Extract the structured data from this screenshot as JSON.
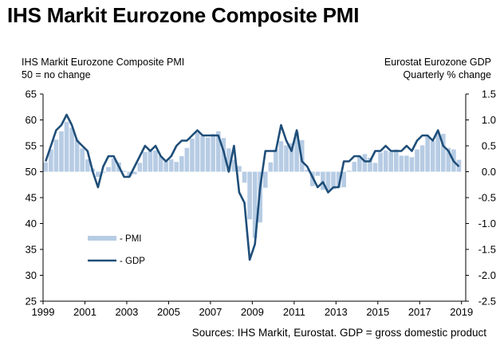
{
  "title": "IHS Markit Eurozone Composite PMI",
  "left_header": {
    "line1": "IHS Markit Eurozone Composite  PMI",
    "line2": "50 = no change"
  },
  "right_header": {
    "line1": "Eurostat Eurozone GDP",
    "line2": "Quarterly % change"
  },
  "source": "Sources: IHS Markit, Eurostat.  GDP = gross domestic product",
  "colors": {
    "pmi_bars": "#b7cce4",
    "gdp_line": "#1f4e79",
    "axis": "#000000"
  },
  "chart_data": {
    "type": "bar",
    "left_axis": {
      "range": [
        25,
        65
      ],
      "ticks": [
        "25",
        "30",
        "35",
        "40",
        "45",
        "50",
        "55",
        "60",
        "65"
      ]
    },
    "right_axis": {
      "range": [
        -2.5,
        1.5
      ],
      "ticks": [
        "-2.5",
        "-2.0",
        "-1.5",
        "-1.0",
        "-0.5",
        "0.0",
        "0.5",
        "1.0",
        "1.5"
      ]
    },
    "x_ticks": [
      "1999",
      "2001",
      "2003",
      "2005",
      "2007",
      "2009",
      "2011",
      "2013",
      "2015",
      "2017",
      "2019"
    ],
    "legend": [
      {
        "name": "- PMI",
        "style": "bar"
      },
      {
        "name": "- GDP",
        "style": "line"
      }
    ],
    "series": [
      {
        "name": "PMI",
        "axis": "left",
        "x": [
          1999.125,
          1999.375,
          1999.625,
          1999.875,
          2000.125,
          2000.375,
          2000.625,
          2000.875,
          2001.125,
          2001.375,
          2001.625,
          2001.875,
          2002.125,
          2002.375,
          2002.625,
          2002.875,
          2003.125,
          2003.375,
          2003.625,
          2003.875,
          2004.125,
          2004.375,
          2004.625,
          2004.875,
          2005.125,
          2005.375,
          2005.625,
          2005.875,
          2006.125,
          2006.375,
          2006.625,
          2006.875,
          2007.125,
          2007.375,
          2007.625,
          2007.875,
          2008.125,
          2008.375,
          2008.625,
          2008.875,
          2009.125,
          2009.375,
          2009.625,
          2009.875,
          2010.125,
          2010.375,
          2010.625,
          2010.875,
          2011.125,
          2011.375,
          2011.625,
          2011.875,
          2012.125,
          2012.375,
          2012.625,
          2012.875,
          2013.125,
          2013.375,
          2013.625,
          2013.875,
          2014.125,
          2014.375,
          2014.625,
          2014.875,
          2015.125,
          2015.375,
          2015.625,
          2015.875,
          2016.125,
          2016.375,
          2016.625,
          2016.875,
          2017.125,
          2017.375,
          2017.625,
          2017.875,
          2018.125,
          2018.375,
          2018.625,
          2018.875
        ],
        "values": [
          51.8,
          54.3,
          56.2,
          57.8,
          59.6,
          58.5,
          56.2,
          54.5,
          52.4,
          50.6,
          49.0,
          49.8,
          50.9,
          52.6,
          51.8,
          50.2,
          49.1,
          49.5,
          51.7,
          53.8,
          54.4,
          54.1,
          53.0,
          52.0,
          52.4,
          51.9,
          53.0,
          54.6,
          56.4,
          57.6,
          56.9,
          56.6,
          57.3,
          57.8,
          56.5,
          54.5,
          52.3,
          51.1,
          47.9,
          40.8,
          37.2,
          40.2,
          46.9,
          51.8,
          54.3,
          55.9,
          55.1,
          55.5,
          57.6,
          56.1,
          50.4,
          47.2,
          49.2,
          46.5,
          46.3,
          46.6,
          46.9,
          47.0,
          50.2,
          51.9,
          53.1,
          53.4,
          52.7,
          51.7,
          53.7,
          54.1,
          53.8,
          54.3,
          53.1,
          53.1,
          52.8,
          54.3,
          55.1,
          56.8,
          55.9,
          57.5,
          57.3,
          54.6,
          54.3,
          52.3
        ]
      },
      {
        "name": "GDP",
        "axis": "right",
        "x": [
          1999.125,
          1999.375,
          1999.625,
          1999.875,
          2000.125,
          2000.375,
          2000.625,
          2000.875,
          2001.125,
          2001.375,
          2001.625,
          2001.875,
          2002.125,
          2002.375,
          2002.625,
          2002.875,
          2003.125,
          2003.375,
          2003.625,
          2003.875,
          2004.125,
          2004.375,
          2004.625,
          2004.875,
          2005.125,
          2005.375,
          2005.625,
          2005.875,
          2006.125,
          2006.375,
          2006.625,
          2006.875,
          2007.125,
          2007.375,
          2007.625,
          2007.875,
          2008.125,
          2008.375,
          2008.625,
          2008.875,
          2009.125,
          2009.375,
          2009.625,
          2009.875,
          2010.125,
          2010.375,
          2010.625,
          2010.875,
          2011.125,
          2011.375,
          2011.625,
          2011.875,
          2012.125,
          2012.375,
          2012.625,
          2012.875,
          2013.125,
          2013.375,
          2013.625,
          2013.875,
          2014.125,
          2014.375,
          2014.625,
          2014.875,
          2015.125,
          2015.375,
          2015.625,
          2015.875,
          2016.125,
          2016.375,
          2016.625,
          2016.875,
          2017.125,
          2017.375,
          2017.625,
          2017.875,
          2018.125,
          2018.375,
          2018.625,
          2018.875
        ],
        "values": [
          0.2,
          0.5,
          0.8,
          0.9,
          1.1,
          0.9,
          0.6,
          0.5,
          0.4,
          0.0,
          -0.3,
          0.1,
          0.3,
          0.3,
          0.1,
          -0.1,
          -0.1,
          0.1,
          0.3,
          0.5,
          0.4,
          0.5,
          0.3,
          0.2,
          0.3,
          0.5,
          0.6,
          0.6,
          0.7,
          0.8,
          0.7,
          0.7,
          0.7,
          0.7,
          0.4,
          0.0,
          0.5,
          -0.4,
          -0.6,
          -1.7,
          -1.4,
          -0.3,
          0.4,
          0.4,
          0.4,
          0.9,
          0.6,
          0.4,
          0.8,
          0.2,
          0.1,
          -0.1,
          -0.3,
          -0.2,
          -0.4,
          -0.3,
          -0.3,
          0.2,
          0.2,
          0.3,
          0.3,
          0.2,
          0.2,
          0.4,
          0.4,
          0.5,
          0.4,
          0.4,
          0.4,
          0.5,
          0.4,
          0.6,
          0.7,
          0.7,
          0.6,
          0.8,
          0.5,
          0.4,
          0.2,
          0.1
        ]
      }
    ]
  }
}
